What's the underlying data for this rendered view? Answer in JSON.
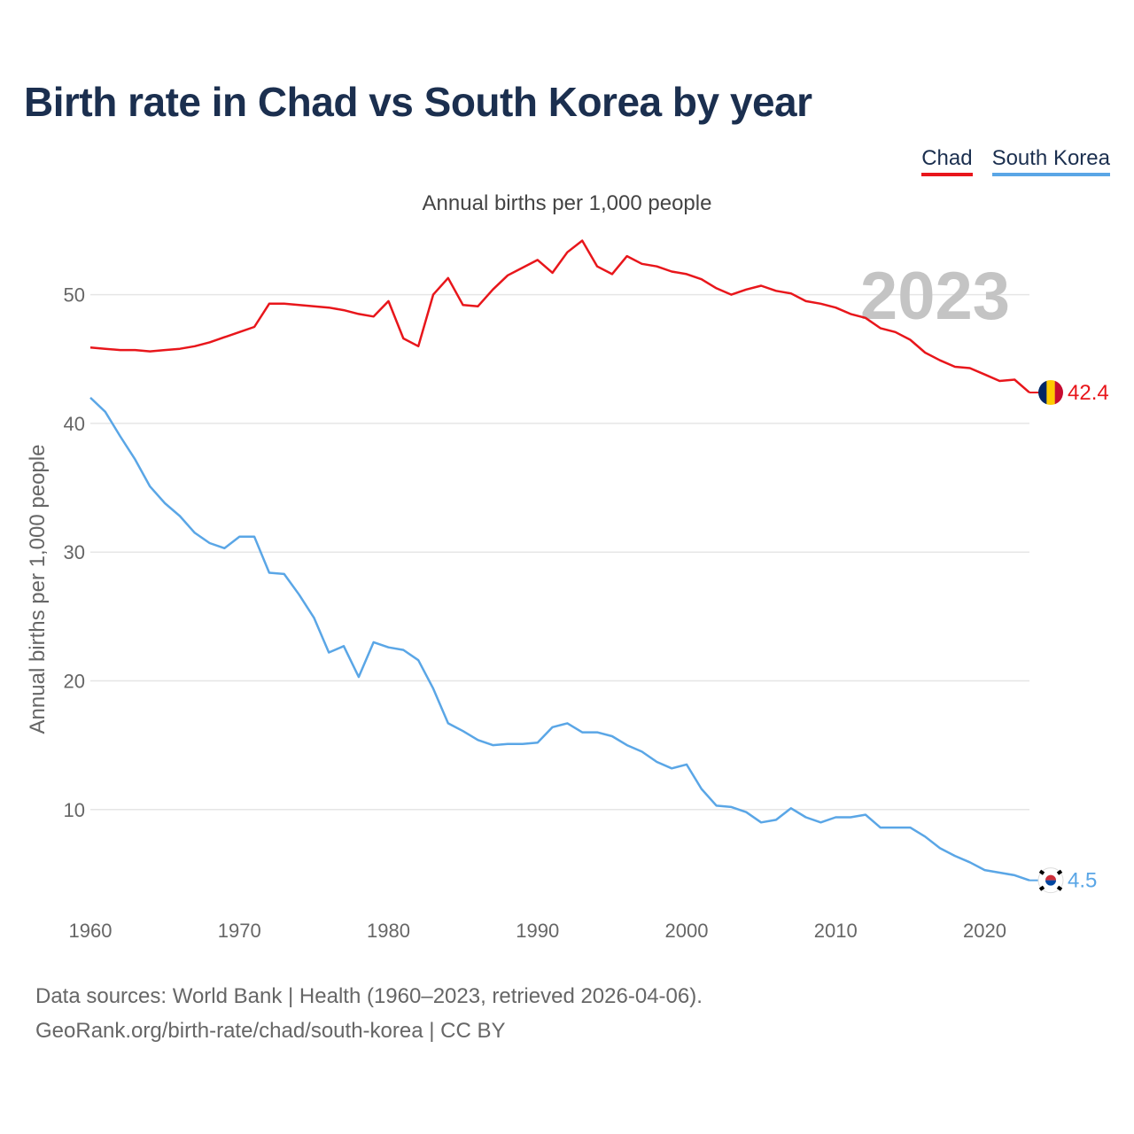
{
  "title": "Birth rate in Chad vs South Korea by year",
  "legend": [
    {
      "label": "Chad",
      "color": "#e8161b"
    },
    {
      "label": "South Korea",
      "color": "#5aa6e6"
    }
  ],
  "footer": {
    "line1": "Data sources: World Bank | Health (1960–2023, retrieved 2026-04-06).",
    "line2": "GeoRank.org/birth-rate/chad/south-korea | CC BY"
  },
  "chart_data": {
    "type": "line",
    "title": "Birth rate in Chad vs South Korea by year",
    "subtitle": "Annual births per 1,000 people",
    "ylabel": "Annual births per 1,000 people",
    "xlabel": "",
    "year_label": "2023",
    "xlim": [
      1960,
      2023
    ],
    "ylim": [
      2,
      55
    ],
    "x_ticks": [
      1960,
      1970,
      1980,
      1990,
      2000,
      2010,
      2020
    ],
    "y_ticks": [
      10,
      20,
      30,
      40,
      50
    ],
    "grid": true,
    "x": [
      1960,
      1961,
      1962,
      1963,
      1964,
      1965,
      1966,
      1967,
      1968,
      1969,
      1970,
      1971,
      1972,
      1973,
      1974,
      1975,
      1976,
      1977,
      1978,
      1979,
      1980,
      1981,
      1982,
      1983,
      1984,
      1985,
      1986,
      1987,
      1988,
      1989,
      1990,
      1991,
      1992,
      1993,
      1994,
      1995,
      1996,
      1997,
      1998,
      1999,
      2000,
      2001,
      2002,
      2003,
      2004,
      2005,
      2006,
      2007,
      2008,
      2009,
      2010,
      2011,
      2012,
      2013,
      2014,
      2015,
      2016,
      2017,
      2018,
      2019,
      2020,
      2021,
      2022,
      2023
    ],
    "series": [
      {
        "name": "Chad",
        "color": "#e8161b",
        "end_label": "42.4",
        "values": [
          45.9,
          45.8,
          45.7,
          45.7,
          45.6,
          45.7,
          45.8,
          46.0,
          46.3,
          46.7,
          47.1,
          47.5,
          49.3,
          49.3,
          49.2,
          49.1,
          49.0,
          48.8,
          48.5,
          48.3,
          49.5,
          46.6,
          46.0,
          50.0,
          51.3,
          49.2,
          49.1,
          50.4,
          51.5,
          52.1,
          52.7,
          51.7,
          53.3,
          54.2,
          52.2,
          51.6,
          53.0,
          52.4,
          52.2,
          51.8,
          51.6,
          51.2,
          50.5,
          50.0,
          50.4,
          50.7,
          50.3,
          50.1,
          49.5,
          49.3,
          49.0,
          48.5,
          48.2,
          47.4,
          47.1,
          46.5,
          45.5,
          44.9,
          44.4,
          44.3,
          43.8,
          43.3,
          43.4,
          42.4
        ]
      },
      {
        "name": "South Korea",
        "color": "#5aa6e6",
        "end_label": "4.5",
        "values": [
          42.0,
          40.9,
          39.0,
          37.2,
          35.1,
          33.8,
          32.8,
          31.5,
          30.7,
          30.3,
          31.2,
          31.2,
          28.4,
          28.3,
          26.7,
          24.9,
          22.2,
          22.7,
          20.3,
          23.0,
          22.6,
          22.4,
          21.6,
          19.4,
          16.7,
          16.1,
          15.4,
          15.0,
          15.1,
          15.1,
          15.2,
          16.4,
          16.7,
          16.0,
          16.0,
          15.7,
          15.0,
          14.5,
          13.7,
          13.2,
          13.5,
          11.6,
          10.3,
          10.2,
          9.8,
          9.0,
          9.2,
          10.1,
          9.4,
          9.0,
          9.4,
          9.4,
          9.6,
          8.6,
          8.6,
          8.6,
          7.9,
          7.0,
          6.4,
          5.9,
          5.3,
          5.1,
          4.9,
          4.5
        ]
      }
    ]
  }
}
